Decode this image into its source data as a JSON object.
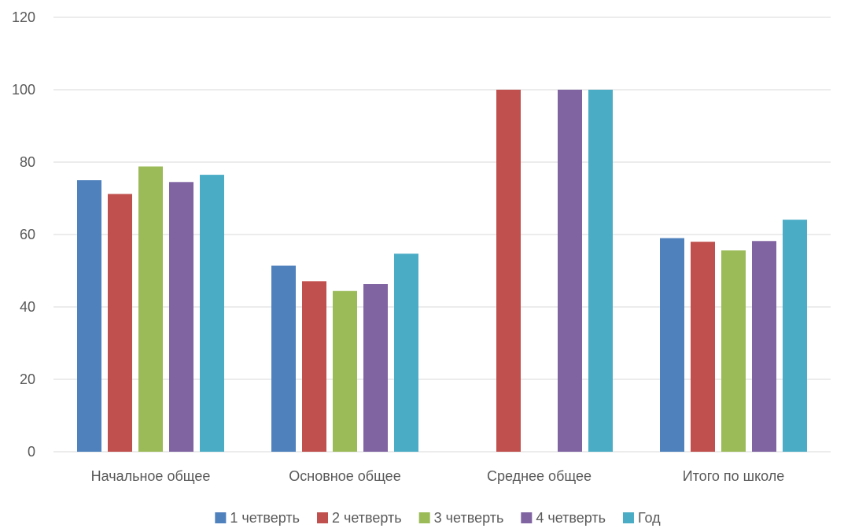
{
  "chart_data": {
    "type": "bar",
    "title": "",
    "xlabel": "",
    "ylabel": "",
    "categories": [
      "Начальное общее",
      "Основное общее",
      "Среднее общее",
      "Итого по школе"
    ],
    "ylim": [
      0,
      120
    ],
    "yticks": [
      0,
      20,
      40,
      60,
      80,
      100,
      120
    ],
    "grid": true,
    "legend_position": "bottom",
    "series": [
      {
        "name": "1 четверть",
        "color": "#4f81bd",
        "values": [
          75,
          51.4,
          null,
          59
        ]
      },
      {
        "name": "2 четверть",
        "color": "#c0504d",
        "values": [
          71.2,
          47.1,
          100,
          58
        ]
      },
      {
        "name": "3 четверть",
        "color": "#9bbb59",
        "values": [
          78.8,
          44.4,
          null,
          55.6
        ]
      },
      {
        "name": "4 четверть",
        "color": "#8064a2",
        "values": [
          74.5,
          46.3,
          100,
          58.2
        ]
      },
      {
        "name": "Год",
        "color": "#4bacc6",
        "values": [
          76.5,
          54.7,
          100,
          64.1
        ]
      }
    ]
  }
}
